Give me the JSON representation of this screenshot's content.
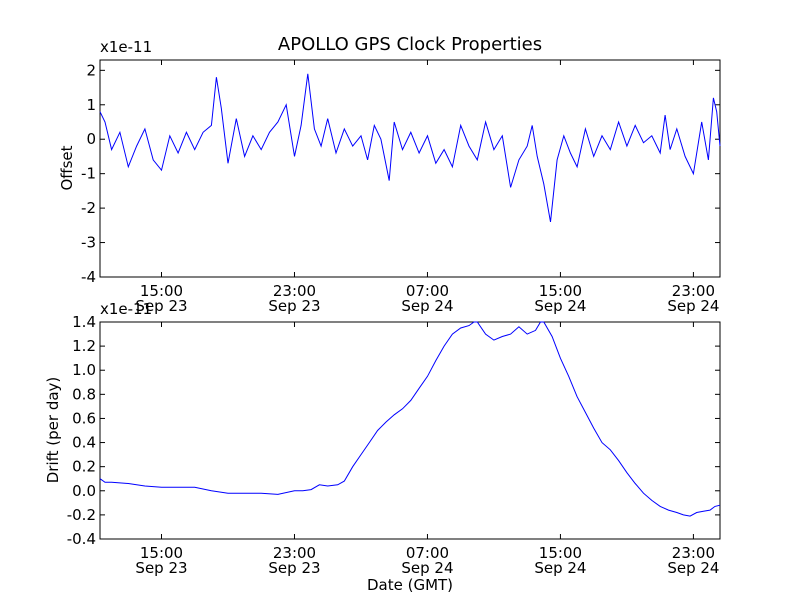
{
  "chart_data": [
    {
      "type": "line",
      "title": "APOLLO GPS Clock Properties",
      "ylabel": "Offset",
      "xlabel": "",
      "multiplier": "x1e-11",
      "line_color": "#0000ff",
      "grid": false,
      "xlim": [
        11.3,
        48.6
      ],
      "ylim": [
        -4,
        2.3
      ],
      "yticks": [
        "-4",
        "-3",
        "-2",
        "-1",
        "0",
        "1",
        "2"
      ],
      "yvalues": [
        -4,
        -3,
        -2,
        -1,
        0,
        1,
        2
      ],
      "xticks": [
        {
          "t": 15,
          "time": "15:00",
          "date": "Sep 23"
        },
        {
          "t": 23,
          "time": "23:00",
          "date": "Sep 23"
        },
        {
          "t": 31,
          "time": "07:00",
          "date": "Sep 24"
        },
        {
          "t": 39,
          "time": "15:00",
          "date": "Sep 24"
        },
        {
          "t": 47,
          "time": "23:00",
          "date": "Sep 24"
        }
      ],
      "series": [
        {
          "x": [
            11.3,
            11.6,
            12.0,
            12.5,
            13.0,
            13.5,
            14.0,
            14.5,
            15.0,
            15.5,
            16.0,
            16.5,
            17.0,
            17.5,
            18.0,
            18.3,
            18.6,
            19.0,
            19.5,
            20.0,
            20.5,
            21.0,
            21.5,
            22.0,
            22.5,
            23.0,
            23.4,
            23.8,
            24.2,
            24.6,
            25.0,
            25.5,
            26.0,
            26.5,
            27.0,
            27.4,
            27.8,
            28.2,
            28.7,
            29.0,
            29.5,
            30.0,
            30.5,
            31.0,
            31.5,
            32.0,
            32.5,
            33.0,
            33.5,
            34.0,
            34.5,
            35.0,
            35.5,
            36.0,
            36.5,
            37.0,
            37.3,
            37.6,
            38.0,
            38.4,
            38.8,
            39.2,
            39.6,
            40.0,
            40.5,
            41.0,
            41.5,
            42.0,
            42.5,
            43.0,
            43.5,
            44.0,
            44.5,
            45.0,
            45.3,
            45.6,
            46.0,
            46.5,
            47.0,
            47.5,
            47.9,
            48.2,
            48.4,
            48.6
          ],
          "y": [
            0.8,
            0.5,
            -0.3,
            0.2,
            -0.8,
            -0.2,
            0.3,
            -0.6,
            -0.9,
            0.1,
            -0.4,
            0.2,
            -0.3,
            0.2,
            0.4,
            1.8,
            0.9,
            -0.7,
            0.6,
            -0.5,
            0.1,
            -0.3,
            0.2,
            0.5,
            1.0,
            -0.5,
            0.4,
            1.9,
            0.3,
            -0.2,
            0.6,
            -0.4,
            0.3,
            -0.2,
            0.1,
            -0.6,
            0.4,
            0.0,
            -1.2,
            0.5,
            -0.3,
            0.2,
            -0.4,
            0.1,
            -0.7,
            -0.3,
            -0.8,
            0.4,
            -0.2,
            -0.6,
            0.5,
            -0.3,
            0.1,
            -1.4,
            -0.6,
            -0.2,
            0.4,
            -0.5,
            -1.3,
            -2.4,
            -0.6,
            0.1,
            -0.4,
            -0.8,
            0.3,
            -0.5,
            0.1,
            -0.3,
            0.5,
            -0.2,
            0.4,
            -0.1,
            0.1,
            -0.4,
            0.7,
            -0.3,
            0.3,
            -0.5,
            -1.0,
            0.5,
            -0.6,
            1.2,
            0.8,
            -0.2
          ]
        }
      ]
    },
    {
      "type": "line",
      "title": "",
      "ylabel": "Drift (per day)",
      "xlabel": "Date (GMT)",
      "multiplier": "x1e-11",
      "line_color": "#0000ff",
      "grid": false,
      "xlim": [
        11.3,
        48.6
      ],
      "ylim": [
        -0.4,
        1.4
      ],
      "yticks": [
        "-0.4",
        "-0.2",
        "0.0",
        "0.2",
        "0.4",
        "0.6",
        "0.8",
        "1.0",
        "1.2",
        "1.4"
      ],
      "yvalues": [
        -0.4,
        -0.2,
        0.0,
        0.2,
        0.4,
        0.6,
        0.8,
        1.0,
        1.2,
        1.4
      ],
      "xticks": [
        {
          "t": 15,
          "time": "15:00",
          "date": "Sep 23"
        },
        {
          "t": 23,
          "time": "23:00",
          "date": "Sep 23"
        },
        {
          "t": 31,
          "time": "07:00",
          "date": "Sep 24"
        },
        {
          "t": 39,
          "time": "15:00",
          "date": "Sep 24"
        },
        {
          "t": 47,
          "time": "23:00",
          "date": "Sep 24"
        }
      ],
      "series": [
        {
          "x": [
            11.3,
            11.6,
            12.0,
            13.0,
            14.0,
            15.0,
            16.0,
            17.0,
            18.0,
            19.0,
            20.0,
            21.0,
            22.0,
            23.0,
            23.5,
            24.0,
            24.5,
            25.0,
            25.6,
            26.0,
            26.5,
            27.0,
            27.5,
            28.0,
            28.5,
            29.0,
            29.5,
            30.0,
            30.5,
            31.0,
            31.5,
            32.0,
            32.5,
            33.0,
            33.5,
            33.8,
            34.0,
            34.5,
            35.0,
            35.5,
            36.0,
            36.5,
            37.0,
            37.5,
            37.8,
            38.0,
            38.5,
            39.0,
            39.5,
            40.0,
            40.5,
            41.0,
            41.5,
            42.0,
            42.5,
            43.0,
            43.5,
            44.0,
            44.5,
            45.0,
            45.5,
            46.0,
            46.4,
            46.8,
            47.2,
            47.6,
            48.0,
            48.3,
            48.6
          ],
          "y": [
            0.1,
            0.07,
            0.07,
            0.06,
            0.04,
            0.03,
            0.03,
            0.03,
            0.0,
            -0.02,
            -0.02,
            -0.02,
            -0.03,
            0.0,
            0.0,
            0.01,
            0.05,
            0.04,
            0.05,
            0.08,
            0.2,
            0.3,
            0.4,
            0.5,
            0.57,
            0.63,
            0.68,
            0.75,
            0.85,
            0.95,
            1.08,
            1.2,
            1.3,
            1.35,
            1.37,
            1.4,
            1.4,
            1.3,
            1.25,
            1.28,
            1.3,
            1.36,
            1.3,
            1.33,
            1.4,
            1.4,
            1.28,
            1.1,
            0.95,
            0.78,
            0.65,
            0.52,
            0.4,
            0.34,
            0.25,
            0.15,
            0.06,
            -0.02,
            -0.08,
            -0.13,
            -0.16,
            -0.18,
            -0.2,
            -0.21,
            -0.18,
            -0.17,
            -0.16,
            -0.13,
            -0.12
          ]
        }
      ]
    }
  ]
}
